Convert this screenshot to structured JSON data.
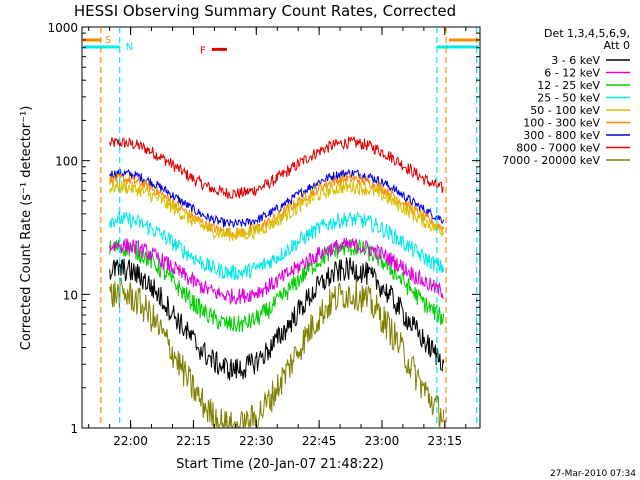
{
  "chart_data": {
    "type": "line",
    "title": "HESSI Observing Summary Count Rates, Corrected",
    "xlabel": "Start Time (20-Jan-07 21:48:22)",
    "ylabel": "Corrected Count Rate (s⁻¹ detector⁻¹)",
    "yscale": "log",
    "ylim": [
      1,
      1000
    ],
    "xlim_minutes_after_start": [
      0,
      95
    ],
    "x_ticks": [
      {
        "label": "22:00",
        "t": 11.6
      },
      {
        "label": "22:15",
        "t": 26.6
      },
      {
        "label": "22:30",
        "t": 41.6
      },
      {
        "label": "22:45",
        "t": 56.6
      },
      {
        "label": "23:00",
        "t": 71.6
      },
      {
        "label": "23:15",
        "t": 86.6
      }
    ],
    "y_ticks": [
      {
        "label": "1",
        "v": 1
      },
      {
        "label": "10",
        "v": 10
      },
      {
        "label": "100",
        "v": 100
      },
      {
        "label": "1000",
        "v": 1000
      }
    ],
    "legend": {
      "position": "right",
      "header_lines": [
        "Det 1,3,4,5,6,9,",
        "Att 0"
      ],
      "entries": [
        {
          "label": "3 - 6 keV",
          "color": "#000000"
        },
        {
          "label": "6 - 12 keV",
          "color": "#e000e0"
        },
        {
          "label": "12 - 25 keV",
          "color": "#00d000"
        },
        {
          "label": "25 - 50 keV",
          "color": "#00e8e8"
        },
        {
          "label": "50 - 100 keV",
          "color": "#d8c000"
        },
        {
          "label": "100 - 300 keV",
          "color": "#ff8c00"
        },
        {
          "label": "300 - 800 keV",
          "color": "#0000e0"
        },
        {
          "label": "800 - 7000 keV",
          "color": "#e00000"
        },
        {
          "label": "7000 - 20000 keV",
          "color": "#808000"
        }
      ]
    },
    "series": [
      {
        "name": "800 - 7000 keV",
        "color": "#e00000",
        "start": 6.6,
        "end": 86.4,
        "base": 88,
        "amp": 0.38,
        "noise": 0.045
      },
      {
        "name": "300 - 800 keV",
        "color": "#0000e0",
        "start": 6.6,
        "end": 86.4,
        "base": 52,
        "amp": 0.38,
        "noise": 0.035
      },
      {
        "name": "100 - 300 keV",
        "color": "#ff8c00",
        "start": 6.6,
        "end": 86.4,
        "base": 46,
        "amp": 0.4,
        "noise": 0.04
      },
      {
        "name": "50 - 100 keV",
        "color": "#d8c000",
        "start": 6.6,
        "end": 86.4,
        "base": 42,
        "amp": 0.36,
        "noise": 0.05
      },
      {
        "name": "25 - 50 keV",
        "color": "#00e8e8",
        "start": 6.6,
        "end": 86.4,
        "base": 23,
        "amp": 0.4,
        "noise": 0.06
      },
      {
        "name": "12 - 25 keV",
        "color": "#00d000",
        "start": 6.6,
        "end": 86.4,
        "base": 11.5,
        "amp": 0.58,
        "noise": 0.07
      },
      {
        "name": "6 - 12 keV",
        "color": "#e000e0",
        "start": 6.6,
        "end": 86.4,
        "base": 15,
        "amp": 0.38,
        "noise": 0.06
      },
      {
        "name": "3 - 6 keV",
        "color": "#000000",
        "start": 6.6,
        "end": 86.4,
        "base": 6.5,
        "amp": 0.75,
        "noise": 0.09
      },
      {
        "name": "7000 - 20000 keV",
        "color": "#808000",
        "start": 6.6,
        "end": 86.4,
        "base": 3.2,
        "amp": 1.0,
        "noise": 0.12
      }
    ],
    "annotations": {
      "saa_label": "S",
      "night_label": "N",
      "flare_label": "F",
      "saa_color": "#ff8c00",
      "night_color": "#00e8e8",
      "flare_color": "#e00000",
      "saa_lines_t": [
        4.5,
        86.9
      ],
      "night_lines_t": [
        9.0,
        84.7,
        94.2
      ],
      "flare_bar_t": [
        31.0,
        34.6
      ],
      "flare_bar_v": 680
    }
  },
  "footer": {
    "timestamp": "27-Mar-2010 07:34"
  }
}
